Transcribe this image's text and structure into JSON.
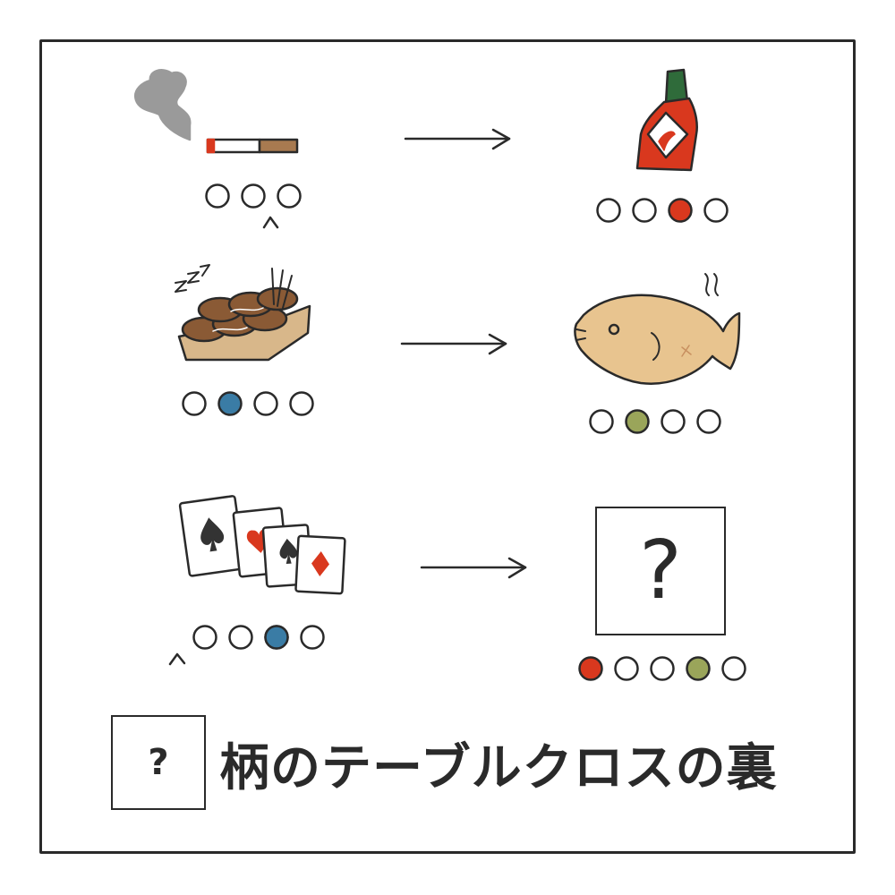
{
  "puzzle": {
    "rows": [
      {
        "left": {
          "icon": "cigarette-icon",
          "circles": [
            "empty",
            "empty",
            "empty"
          ],
          "has_caret": true
        },
        "right": {
          "icon": "hot-sauce-icon",
          "circles": [
            "empty",
            "empty",
            "red",
            "empty"
          ]
        }
      },
      {
        "left": {
          "icon": "takoyaki-icon",
          "circles": [
            "empty",
            "blue",
            "empty",
            "empty"
          ]
        },
        "right": {
          "icon": "taiyaki-icon",
          "circles": [
            "empty",
            "green",
            "empty",
            "empty"
          ]
        }
      },
      {
        "left": {
          "icon": "playing-cards-icon",
          "circles": [
            "empty",
            "empty",
            "empty",
            "blue",
            "empty"
          ],
          "has_caret": true
        },
        "right": {
          "unknown_label": "?",
          "circles": [
            "red",
            "empty",
            "empty",
            "green",
            "empty"
          ]
        }
      }
    ],
    "colors": {
      "red": "#d9381e",
      "blue": "#3a7ca5",
      "green": "#9aa55a",
      "outline": "#2a2a2a"
    }
  },
  "footer": {
    "box_label": "?",
    "caption": "柄のテーブルクロスの裏"
  }
}
